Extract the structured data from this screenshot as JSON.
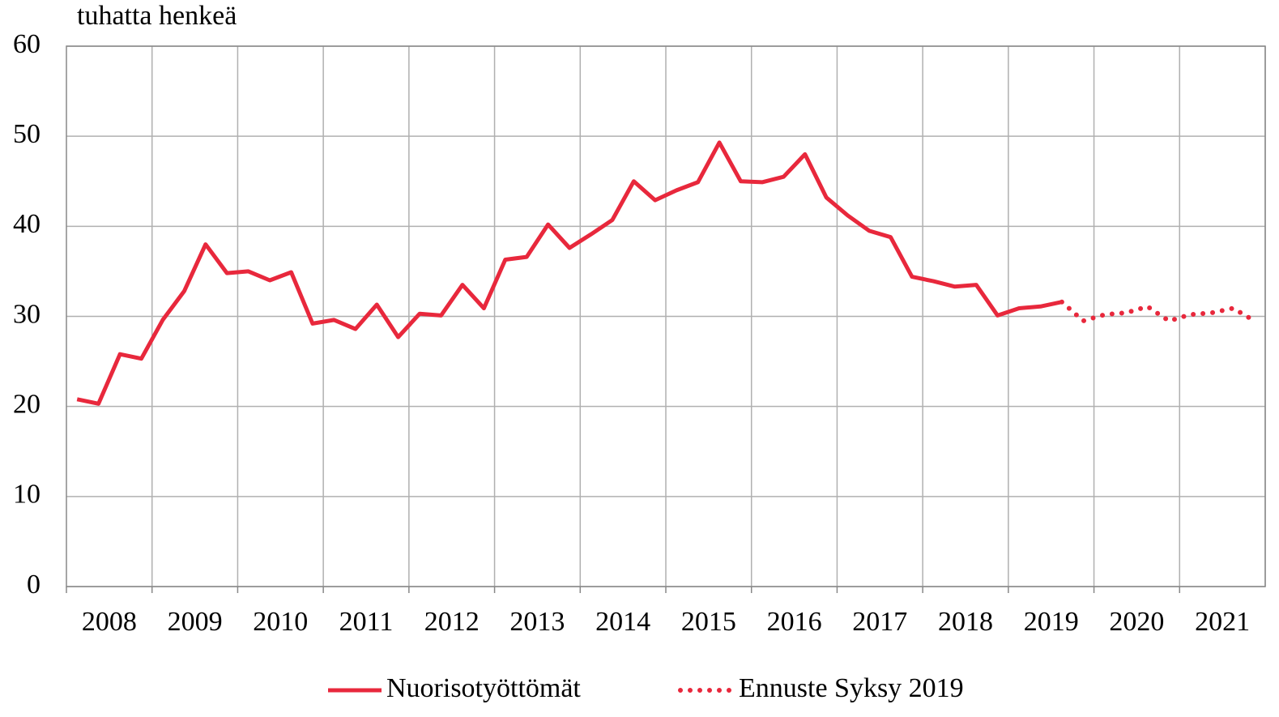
{
  "chart_data": {
    "type": "line",
    "y_axis_label": "tuhatta henkeä",
    "categories": [
      "2008",
      null,
      null,
      null,
      "2009",
      null,
      null,
      null,
      "2010",
      null,
      null,
      null,
      "2011",
      null,
      null,
      null,
      "2012",
      null,
      null,
      null,
      "2013",
      null,
      null,
      null,
      "2014",
      null,
      null,
      null,
      "2015",
      null,
      null,
      null,
      "2016",
      null,
      null,
      null,
      "2017",
      null,
      null,
      null,
      "2018",
      null,
      null,
      null,
      "2019",
      null,
      null,
      null,
      "2020",
      null,
      null,
      null,
      "2021",
      null,
      null,
      null
    ],
    "series": [
      {
        "name": "Nuorisotyöttömät",
        "color": "#e8283c",
        "style": "solid",
        "values": [
          20.8,
          20.3,
          25.8,
          25.3,
          29.6,
          32.8,
          38.0,
          34.8,
          35.0,
          34.0,
          34.9,
          29.2,
          29.6,
          28.6,
          31.3,
          27.7,
          30.3,
          30.1,
          33.5,
          30.9,
          36.3,
          36.6,
          40.2,
          37.6,
          39.1,
          40.7,
          45.0,
          42.9,
          44.0,
          44.9,
          49.3,
          45.0,
          44.9,
          45.5,
          48.0,
          43.2,
          41.2,
          39.5,
          38.8,
          34.4,
          33.9,
          33.3,
          33.5,
          30.1,
          30.9,
          31.1,
          31.6,
          null,
          null,
          null,
          null,
          null,
          null,
          null,
          null,
          null
        ]
      },
      {
        "name": "Ennuste Syksy 2019",
        "color": "#e8283c",
        "style": "dotted",
        "values": [
          null,
          null,
          null,
          null,
          null,
          null,
          null,
          null,
          null,
          null,
          null,
          null,
          null,
          null,
          null,
          null,
          null,
          null,
          null,
          null,
          null,
          null,
          null,
          null,
          null,
          null,
          null,
          null,
          null,
          null,
          null,
          null,
          null,
          null,
          null,
          null,
          null,
          null,
          null,
          null,
          null,
          null,
          null,
          null,
          null,
          null,
          31.6,
          29.5,
          30.2,
          30.4,
          31.1,
          29.5,
          30.2,
          30.4,
          30.9,
          29.5
        ]
      }
    ],
    "ylim": [
      0,
      60
    ],
    "yticks": [
      0,
      10,
      20,
      30,
      40,
      50,
      60
    ],
    "grid": true,
    "legend": "bottom"
  }
}
